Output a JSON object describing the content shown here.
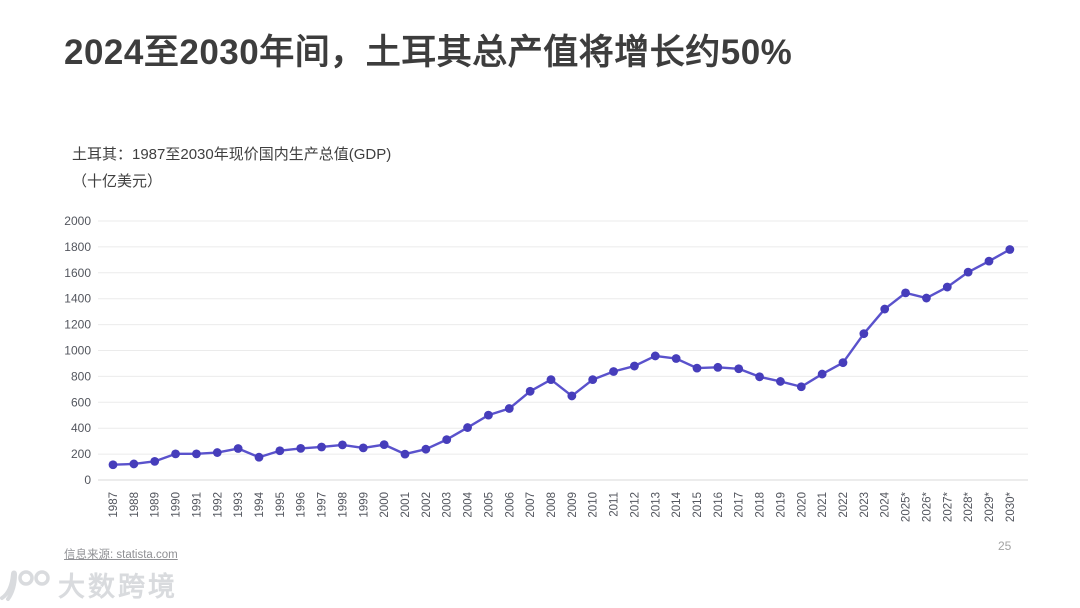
{
  "page": {
    "title": "2024至2030年间，土耳其总产值将增长约50%",
    "source_label": "信息来源: statista.com",
    "page_number": "25",
    "watermark_text": "大数跨境",
    "watermark_icon": "100-logo-icon"
  },
  "chart_data": {
    "type": "line",
    "title": "土耳其：1987至2030年现价国内生产总值(GDP)",
    "unit_label": "（十亿美元）",
    "categories": [
      "1987",
      "1988",
      "1989",
      "1990",
      "1991",
      "1992",
      "1993",
      "1994",
      "1995",
      "1996",
      "1997",
      "1998",
      "1999",
      "2000",
      "2001",
      "2002",
      "2003",
      "2004",
      "2005",
      "2006",
      "2007",
      "2008",
      "2009",
      "2010",
      "2011",
      "2012",
      "2013",
      "2014",
      "2015",
      "2016",
      "2017",
      "2018",
      "2019",
      "2020",
      "2021",
      "2022",
      "2023",
      "2024",
      "2025*",
      "2026*",
      "2027*",
      "2028*",
      "2029*",
      "2030*"
    ],
    "values": [
      118,
      124,
      144,
      202,
      202,
      212,
      243,
      176,
      226,
      244,
      255,
      271,
      248,
      273,
      200,
      238,
      312,
      405,
      501,
      552,
      685,
      775,
      649,
      775,
      838,
      880,
      958,
      938,
      864,
      870,
      859,
      797,
      761,
      720,
      818,
      906,
      1130,
      1320,
      1445,
      1405,
      1490,
      1605,
      1690,
      1780
    ],
    "ylim": [
      0,
      2000
    ],
    "ytick_step": 200,
    "grid": true,
    "legend": "none",
    "line_color": "#5a52cc",
    "marker_color": "#463dbb",
    "gridline_color": "#ebebeb",
    "zeroline_color": "#d8d8d8",
    "tick_label_color": "#53565e"
  }
}
